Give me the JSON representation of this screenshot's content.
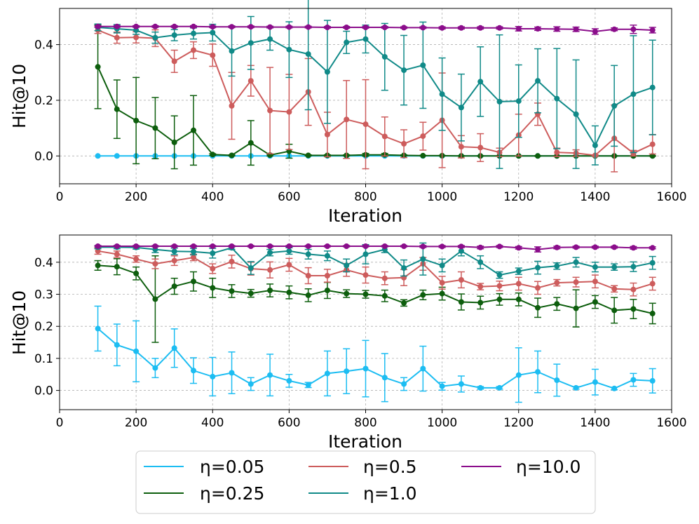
{
  "chart_data": {
    "type": "line",
    "x_label": "Iteration",
    "y_label": "Hit@10",
    "x_ticks": [
      "0",
      "200",
      "400",
      "600",
      "800",
      "1000",
      "1200",
      "1400",
      "1600"
    ],
    "x": [
      100,
      150,
      200,
      250,
      300,
      350,
      400,
      450,
      500,
      550,
      600,
      650,
      700,
      750,
      800,
      850,
      900,
      950,
      1000,
      1050,
      1100,
      1150,
      1200,
      1250,
      1300,
      1350,
      1400,
      1450,
      1500,
      1550
    ],
    "legend": {
      "placement": "below",
      "entries": [
        "η=0.05",
        "η=0.25",
        "η=0.5",
        "η=1.0",
        "η=10.0"
      ]
    },
    "colors": {
      "eta_0.05": "#1cbdf2",
      "eta_0.25": "#0d5e0d",
      "eta_0.5": "#cd5c5c",
      "eta_1.0": "#108a88",
      "eta_10.0": "#8b0d8b"
    },
    "panels": [
      {
        "ylim": [
          -0.1,
          0.53
        ],
        "y_ticks": [
          "0.0",
          "0.2",
          "0.4"
        ],
        "y_tick_values": [
          0.0,
          0.2,
          0.4
        ],
        "series": [
          {
            "name": "η=0.05",
            "color": "#1cbdf2",
            "values": [
              0,
              0,
              0,
              0,
              0,
              0,
              0,
              0,
              0,
              0,
              0,
              0,
              0,
              0,
              0,
              0,
              0,
              0,
              0,
              0,
              0,
              0,
              0,
              0,
              0,
              0,
              0,
              0,
              0,
              0
            ],
            "errors": [
              0,
              0,
              0,
              0,
              0,
              0,
              0,
              0,
              0,
              0,
              0,
              0,
              0,
              0,
              0,
              0,
              0,
              0,
              0,
              0,
              0,
              0,
              0,
              0,
              0,
              0,
              0,
              0,
              0,
              0
            ]
          },
          {
            "name": "η=0.25",
            "color": "#0d5e0d",
            "values": [
              0.32,
              0.168,
              0.127,
              0.1,
              0.049,
              0.092,
              0.005,
              0.002,
              0.047,
              0.003,
              0.017,
              0.002,
              0.002,
              0.002,
              0.004,
              0.004,
              0.002,
              0.001,
              0.001,
              0,
              0,
              0,
              0,
              0,
              0,
              0,
              0,
              0,
              0,
              0
            ],
            "errors": [
              0.15,
              0.105,
              0.155,
              0.11,
              0.095,
              0.125,
              0.003,
              0.002,
              0.08,
              0.003,
              0.025,
              0.002,
              0.002,
              0.002,
              0.005,
              0.005,
              0.002,
              0.001,
              0.001,
              0.001,
              0.001,
              0.001,
              0.001,
              0.001,
              0.001,
              0.001,
              0.001,
              0.001,
              0.001,
              0.001
            ]
          },
          {
            "name": "η=0.5",
            "color": "#cd5c5c",
            "values": [
              0.452,
              0.425,
              0.426,
              0.423,
              0.34,
              0.38,
              0.362,
              0.18,
              0.27,
              0.163,
              0.158,
              0.23,
              0.077,
              0.131,
              0.114,
              0.07,
              0.044,
              0.071,
              0.128,
              0.033,
              0.03,
              0.013,
              0.075,
              0.15,
              0.013,
              0.01,
              0.002,
              0.063,
              0.01,
              0.042
            ],
            "errors": [
              0.012,
              0.02,
              0.02,
              0.03,
              0.04,
              0.03,
              0.04,
              0.12,
              0.055,
              0.155,
              0.135,
              0.12,
              0.08,
              0.14,
              0.16,
              0.07,
              0.05,
              0.05,
              0.17,
              0.04,
              0.05,
              0.015,
              0.075,
              0.04,
              0.015,
              0.012,
              0.002,
              0.12,
              0.01,
              0.035
            ]
          },
          {
            "name": "η=1.0",
            "color": "#108a88",
            "values": [
              0.462,
              0.457,
              0.452,
              0.425,
              0.434,
              0.44,
              0.443,
              0.377,
              0.406,
              0.42,
              0.382,
              0.366,
              0.302,
              0.408,
              0.42,
              0.356,
              0.308,
              0.326,
              0.222,
              0.174,
              0.267,
              0.195,
              0.197,
              0.27,
              0.206,
              0.15,
              0.038,
              0.18,
              0.222,
              0.246
            ],
            "errors": [
              0.012,
              0.015,
              0.015,
              0.02,
              0.02,
              0.02,
              0.03,
              0.09,
              0.095,
              0.04,
              0.1,
              0.2,
              0.185,
              0.04,
              0.05,
              0.12,
              0.125,
              0.155,
              0.13,
              0.12,
              0.125,
              0.24,
              0.13,
              0.115,
              0.18,
              0.195,
              0.07,
              0.145,
              0.21,
              0.17
            ]
          },
          {
            "name": "η=10.0",
            "color": "#8b0d8b",
            "values": [
              0.465,
              0.465,
              0.465,
              0.465,
              0.465,
              0.465,
              0.464,
              0.464,
              0.464,
              0.463,
              0.463,
              0.463,
              0.462,
              0.462,
              0.462,
              0.462,
              0.461,
              0.461,
              0.46,
              0.46,
              0.46,
              0.46,
              0.457,
              0.457,
              0.456,
              0.455,
              0.447,
              0.455,
              0.455,
              0.452
            ],
            "errors": [
              0.003,
              0.003,
              0.003,
              0.003,
              0.003,
              0.003,
              0.003,
              0.003,
              0.003,
              0.003,
              0.003,
              0.003,
              0.003,
              0.003,
              0.003,
              0.003,
              0.003,
              0.003,
              0.004,
              0.004,
              0.004,
              0.004,
              0.008,
              0.006,
              0.008,
              0.008,
              0.01,
              0.005,
              0.015,
              0.01
            ]
          }
        ]
      },
      {
        "ylim": [
          -0.06,
          0.485
        ],
        "y_ticks": [
          "0.0",
          "0.1",
          "0.2",
          "0.3",
          "0.4"
        ],
        "y_tick_values": [
          0.0,
          0.1,
          0.2,
          0.3,
          0.4
        ],
        "series": [
          {
            "name": "η=0.05",
            "color": "#1cbdf2",
            "values": [
              0.193,
              0.142,
              0.122,
              0.07,
              0.132,
              0.062,
              0.043,
              0.055,
              0.02,
              0.048,
              0.03,
              0.017,
              0.053,
              0.06,
              0.068,
              0.04,
              0.02,
              0.068,
              0.013,
              0.02,
              0.008,
              0.008,
              0.048,
              0.058,
              0.032,
              0.008,
              0.026,
              0.006,
              0.033,
              0.03
            ],
            "errors": [
              0.07,
              0.065,
              0.095,
              0.03,
              0.06,
              0.04,
              0.06,
              0.065,
              0.02,
              0.065,
              0.02,
              0.008,
              0.07,
              0.07,
              0.088,
              0.075,
              0.02,
              0.07,
              0.012,
              0.025,
              0.004,
              0.004,
              0.085,
              0.065,
              0.05,
              0.004,
              0.04,
              0.004,
              0.02,
              0.038
            ]
          },
          {
            "name": "η=0.25",
            "color": "#0d5e0d",
            "values": [
              0.39,
              0.386,
              0.365,
              0.285,
              0.325,
              0.34,
              0.32,
              0.31,
              0.303,
              0.312,
              0.306,
              0.297,
              0.312,
              0.302,
              0.3,
              0.295,
              0.273,
              0.298,
              0.302,
              0.276,
              0.274,
              0.284,
              0.284,
              0.258,
              0.27,
              0.256,
              0.276,
              0.25,
              0.254,
              0.24
            ],
            "errors": [
              0.015,
              0.025,
              0.02,
              0.135,
              0.025,
              0.03,
              0.03,
              0.02,
              0.012,
              0.02,
              0.02,
              0.02,
              0.025,
              0.012,
              0.012,
              0.018,
              0.01,
              0.015,
              0.02,
              0.025,
              0.02,
              0.018,
              0.02,
              0.03,
              0.02,
              0.058,
              0.02,
              0.04,
              0.03,
              0.032
            ]
          },
          {
            "name": "η=0.5",
            "color": "#cd5c5c",
            "values": [
              0.435,
              0.425,
              0.41,
              0.395,
              0.405,
              0.415,
              0.38,
              0.402,
              0.38,
              0.376,
              0.392,
              0.358,
              0.358,
              0.376,
              0.36,
              0.35,
              0.352,
              0.395,
              0.336,
              0.345,
              0.324,
              0.326,
              0.333,
              0.32,
              0.336,
              0.338,
              0.34,
              0.317,
              0.315,
              0.333
            ],
            "errors": [
              0.01,
              0.01,
              0.01,
              0.015,
              0.015,
              0.01,
              0.015,
              0.02,
              0.02,
              0.025,
              0.02,
              0.025,
              0.02,
              0.02,
              0.025,
              0.02,
              0.025,
              0.02,
              0.02,
              0.025,
              0.01,
              0.015,
              0.02,
              0.02,
              0.01,
              0.015,
              0.02,
              0.01,
              0.02,
              0.02
            ]
          },
          {
            "name": "η=1.0",
            "color": "#108a88",
            "values": [
              0.447,
              0.447,
              0.446,
              0.44,
              0.434,
              0.433,
              0.428,
              0.445,
              0.382,
              0.43,
              0.435,
              0.425,
              0.42,
              0.39,
              0.425,
              0.44,
              0.382,
              0.41,
              0.39,
              0.435,
              0.4,
              0.36,
              0.372,
              0.383,
              0.388,
              0.4,
              0.385,
              0.385,
              0.386,
              0.398
            ],
            "errors": [
              0.005,
              0.005,
              0.005,
              0.01,
              0.01,
              0.01,
              0.015,
              0.005,
              0.02,
              0.01,
              0.01,
              0.015,
              0.015,
              0.02,
              0.03,
              0.01,
              0.025,
              0.05,
              0.02,
              0.015,
              0.02,
              0.01,
              0.01,
              0.02,
              0.01,
              0.015,
              0.015,
              0.01,
              0.015,
              0.02
            ]
          },
          {
            "name": "η=10.0",
            "color": "#8b0d8b",
            "values": [
              0.45,
              0.45,
              0.45,
              0.45,
              0.45,
              0.45,
              0.45,
              0.45,
              0.45,
              0.45,
              0.45,
              0.45,
              0.45,
              0.45,
              0.45,
              0.45,
              0.45,
              0.449,
              0.449,
              0.449,
              0.446,
              0.449,
              0.445,
              0.44,
              0.446,
              0.447,
              0.447,
              0.447,
              0.445,
              0.445
            ],
            "errors": [
              0.002,
              0.002,
              0.002,
              0.002,
              0.002,
              0.002,
              0.002,
              0.002,
              0.002,
              0.002,
              0.002,
              0.002,
              0.002,
              0.002,
              0.002,
              0.002,
              0.002,
              0.003,
              0.003,
              0.003,
              0.004,
              0.003,
              0.004,
              0.008,
              0.004,
              0.003,
              0.003,
              0.003,
              0.004,
              0.003
            ]
          }
        ]
      }
    ]
  }
}
